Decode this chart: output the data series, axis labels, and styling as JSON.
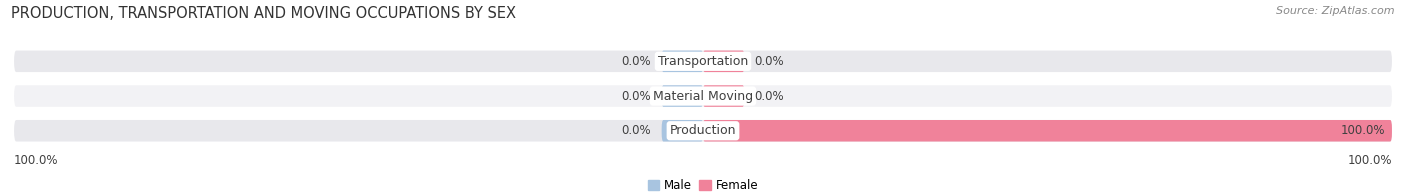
{
  "title": "PRODUCTION, TRANSPORTATION AND MOVING OCCUPATIONS BY SEX",
  "source": "Source: ZipAtlas.com",
  "categories": [
    "Transportation",
    "Material Moving",
    "Production"
  ],
  "male_values": [
    0.0,
    0.0,
    0.0
  ],
  "female_values": [
    0.0,
    0.0,
    100.0
  ],
  "male_color": "#a8c4e0",
  "female_color": "#f0829a",
  "bar_bg_color": "#e8e8ec",
  "bar_bg_color2": "#f2f2f5",
  "title_fontsize": 10.5,
  "source_fontsize": 8,
  "label_fontsize": 8.5,
  "cat_fontsize": 9,
  "axis_label_left": "100.0%",
  "axis_label_right": "100.0%",
  "bg_color": "#ffffff"
}
